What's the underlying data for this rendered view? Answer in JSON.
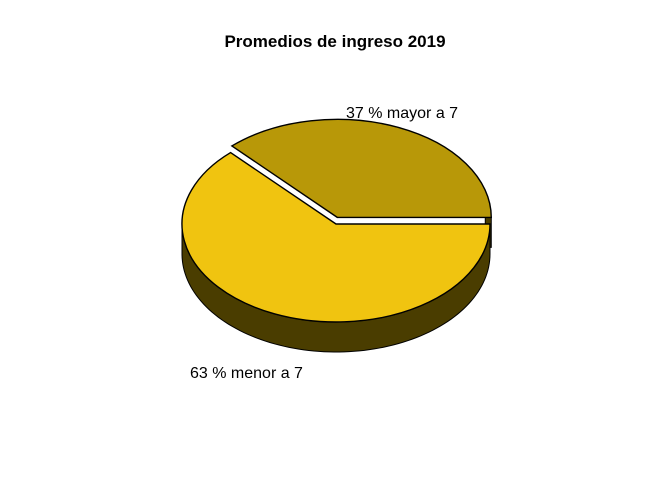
{
  "chart_data": {
    "type": "pie",
    "title": "Promedios de ingreso 2019",
    "three_d": true,
    "exploded": true,
    "slices": [
      {
        "label": "37 % mayor a 7",
        "value": 37,
        "color": "#B89808",
        "side_color": "#4A3D00"
      },
      {
        "label": "63 % menor a 7",
        "value": 63,
        "color": "#F0C410",
        "side_color": "#4A3D00"
      }
    ],
    "outline_color": "#000000"
  }
}
